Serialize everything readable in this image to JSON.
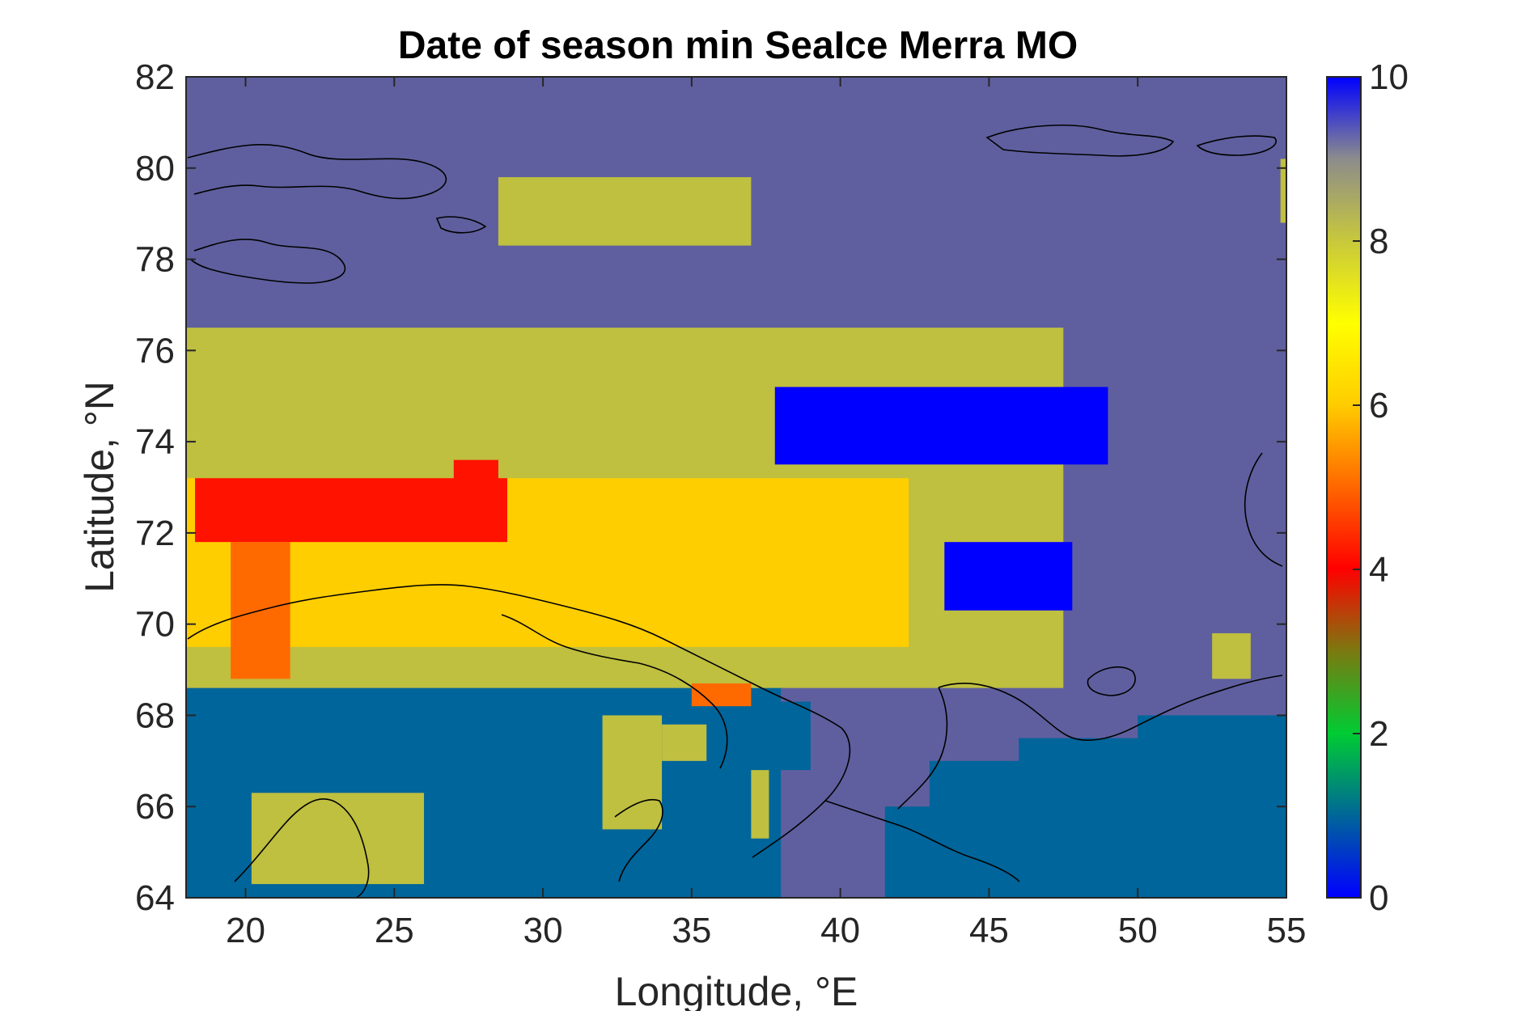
{
  "chart_data": {
    "type": "heatmap",
    "title": "Date of season min SeaIce Merra MO",
    "xlabel": "Longitude, °E",
    "ylabel": "Latitude, °N",
    "xlim": [
      18.0,
      55.0
    ],
    "ylim": [
      64,
      82
    ],
    "xticks": [
      20,
      25,
      30,
      35,
      40,
      45,
      50,
      55
    ],
    "yticks": [
      64,
      66,
      68,
      70,
      72,
      74,
      76,
      78,
      80,
      82
    ],
    "colorbar": {
      "clim": [
        0,
        10
      ],
      "ticks": [
        0,
        2,
        4,
        6,
        8,
        10
      ],
      "palette": [
        "#0000ff",
        "#006699",
        "#00cc33",
        "#7a7a10",
        "#ff0000",
        "#ff6600",
        "#ffcc00",
        "#ffff00",
        "#c8c83c",
        "#8c8c8c",
        "#0000ff"
      ]
    },
    "value_colors": {
      "1": "#00659a",
      "5": "#ff1200",
      "6": "#ff6a00",
      "7": "#ffce00",
      "8": "#bfbf40",
      "9": "#5f5f9f",
      "10": "#0000ff"
    },
    "background_value": 9,
    "regions": [
      {
        "value": 1,
        "lon": [
          18.0,
          38.0
        ],
        "lat": [
          64.0,
          68.6
        ]
      },
      {
        "value": 1,
        "lon": [
          26.0,
          33.0
        ],
        "lat": [
          68.6,
          69.8
        ]
      },
      {
        "value": 1,
        "lon": [
          38.0,
          39.0
        ],
        "lat": [
          66.8,
          68.3
        ]
      },
      {
        "value": 1,
        "lon": [
          41.5,
          55.0
        ],
        "lat": [
          64.0,
          66.0
        ]
      },
      {
        "value": 1,
        "lon": [
          43.0,
          55.0
        ],
        "lat": [
          64.0,
          67.0
        ]
      },
      {
        "value": 1,
        "lon": [
          46.0,
          55.0
        ],
        "lat": [
          64.0,
          67.5
        ]
      },
      {
        "value": 1,
        "lon": [
          50.0,
          55.0
        ],
        "lat": [
          64.0,
          68.0
        ]
      },
      {
        "value": 8,
        "lon": [
          20.2,
          26.0
        ],
        "lat": [
          64.3,
          66.3
        ]
      },
      {
        "value": 8,
        "lon": [
          32.0,
          34.0
        ],
        "lat": [
          65.5,
          68.0
        ]
      },
      {
        "value": 8,
        "lon": [
          34.0,
          35.5
        ],
        "lat": [
          67.0,
          67.8
        ]
      },
      {
        "value": 8,
        "lon": [
          37.0,
          37.6
        ],
        "lat": [
          65.3,
          66.8
        ]
      },
      {
        "value": 8,
        "lon": [
          52.5,
          53.8
        ],
        "lat": [
          68.8,
          69.8
        ]
      },
      {
        "value": 8,
        "lon": [
          18.0,
          47.5
        ],
        "lat": [
          68.6,
          76.5
        ]
      },
      {
        "value": 8,
        "lon": [
          28.5,
          37.0
        ],
        "lat": [
          78.3,
          79.8
        ]
      },
      {
        "value": 8,
        "lon": [
          54.8,
          55.0
        ],
        "lat": [
          78.8,
          80.2
        ]
      },
      {
        "value": 10,
        "lon": [
          37.8,
          49.0
        ],
        "lat": [
          73.5,
          75.2
        ]
      },
      {
        "value": 10,
        "lon": [
          43.5,
          47.8
        ],
        "lat": [
          70.3,
          71.8
        ]
      },
      {
        "value": 7,
        "lon": [
          18.0,
          42.3
        ],
        "lat": [
          69.5,
          73.2
        ]
      },
      {
        "value": 6,
        "lon": [
          19.5,
          21.5
        ],
        "lat": [
          68.8,
          71.8
        ]
      },
      {
        "value": 6,
        "lon": [
          35.0,
          37.0
        ],
        "lat": [
          68.2,
          68.7
        ]
      },
      {
        "value": 5,
        "lon": [
          18.3,
          28.8
        ],
        "lat": [
          71.8,
          73.2
        ]
      },
      {
        "value": 5,
        "lon": [
          27.0,
          28.5
        ],
        "lat": [
          73.0,
          73.6
        ]
      }
    ]
  }
}
